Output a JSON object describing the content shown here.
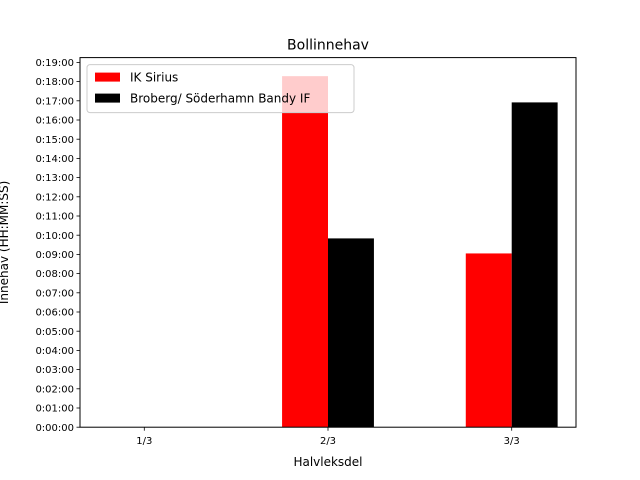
{
  "chart_data": {
    "type": "bar",
    "title": "Bollinnehav",
    "xlabel": "Halvleksdel",
    "ylabel": "Innehav (HH:MM:SS)",
    "categories": [
      "1/3",
      "2/3",
      "3/3"
    ],
    "series": [
      {
        "name": "IK Sirius",
        "color": "#ff0000",
        "values": [
          0,
          1097,
          543
        ]
      },
      {
        "name": "Broberg/ Söderhamn Bandy IF",
        "color": "#000000",
        "values": [
          0,
          590,
          1015
        ]
      }
    ],
    "value_unit": "seconds",
    "ylim": [
      0,
      1155
    ],
    "y_ticks": [
      "0:00:00",
      "0:01:00",
      "0:02:00",
      "0:03:00",
      "0:04:00",
      "0:05:00",
      "0:06:00",
      "0:07:00",
      "0:08:00",
      "0:09:00",
      "0:10:00",
      "0:11:00",
      "0:12:00",
      "0:13:00",
      "0:14:00",
      "0:15:00",
      "0:16:00",
      "0:17:00",
      "0:18:00",
      "0:19:00"
    ],
    "grid": false,
    "legend_position": "top-left"
  }
}
